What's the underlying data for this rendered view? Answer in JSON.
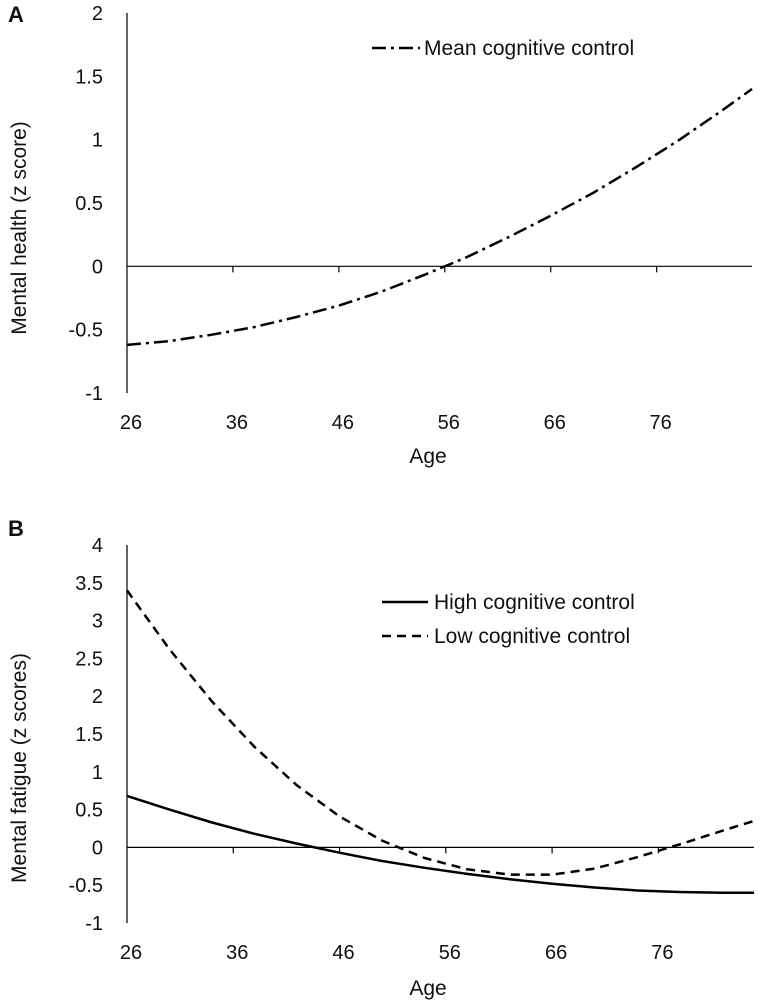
{
  "chart_data": [
    {
      "panel_label": "A",
      "type": "line",
      "xlabel": "Age",
      "ylabel": "Mental health (z score)",
      "xticks": [
        26,
        36,
        46,
        56,
        66,
        76
      ],
      "yticks": [
        -1,
        -0.5,
        0,
        0.5,
        1,
        1.5,
        2
      ],
      "xlim": [
        26,
        85
      ],
      "ylim": [
        -1,
        2
      ],
      "series": [
        {
          "name": "Mean cognitive control",
          "style": "dash-dot",
          "x": [
            26,
            30,
            34,
            38,
            42,
            46,
            50,
            54,
            58,
            62,
            66,
            70,
            74,
            78,
            82,
            85
          ],
          "values": [
            -0.62,
            -0.59,
            -0.54,
            -0.48,
            -0.4,
            -0.31,
            -0.2,
            -0.07,
            0.07,
            0.23,
            0.4,
            0.58,
            0.78,
            0.99,
            1.22,
            1.4
          ]
        }
      ]
    },
    {
      "panel_label": "B",
      "type": "line",
      "xlabel": "Age",
      "ylabel": "Mental fatigue (z scores)",
      "xticks": [
        26,
        36,
        46,
        56,
        66,
        76
      ],
      "yticks": [
        -1,
        -0.5,
        0,
        0.5,
        1,
        1.5,
        2,
        2.5,
        3,
        3.5,
        4
      ],
      "xlim": [
        26,
        85
      ],
      "ylim": [
        -1,
        4
      ],
      "series": [
        {
          "name": "High cognitive control",
          "style": "solid",
          "x": [
            26,
            30,
            34,
            38,
            42,
            46,
            50,
            54,
            58,
            62,
            66,
            70,
            74,
            78,
            82,
            85
          ],
          "values": [
            0.68,
            0.5,
            0.33,
            0.18,
            0.05,
            -0.07,
            -0.18,
            -0.27,
            -0.35,
            -0.42,
            -0.48,
            -0.53,
            -0.57,
            -0.59,
            -0.6,
            -0.6
          ]
        },
        {
          "name": "Low cognitive control",
          "style": "dashed",
          "x": [
            26,
            30,
            34,
            38,
            42,
            46,
            50,
            54,
            58,
            62,
            66,
            70,
            74,
            78,
            82,
            85
          ],
          "values": [
            3.4,
            2.62,
            1.93,
            1.33,
            0.82,
            0.41,
            0.09,
            -0.14,
            -0.29,
            -0.36,
            -0.36,
            -0.28,
            -0.13,
            0.04,
            0.22,
            0.35
          ]
        }
      ]
    }
  ]
}
